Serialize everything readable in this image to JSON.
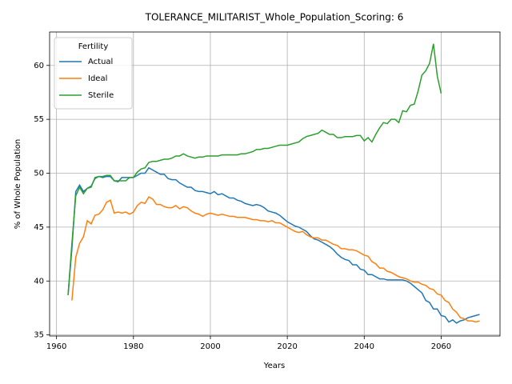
{
  "chart_data": {
    "type": "line",
    "title": "TOLERANCE_MILITARIST_Whole_Population_Scoring: 6",
    "xlabel": "Years",
    "ylabel": "% of Whole Population",
    "legend_title": "Fertility",
    "legend": "upper left",
    "grid": true,
    "xlim": [
      1958.2,
      2075.3
    ],
    "xticks": [
      1960,
      1980,
      2000,
      2020,
      2040,
      2060
    ],
    "ylim": [
      34.9,
      63.1
    ],
    "yticks": [
      35,
      40,
      45,
      50,
      55,
      60
    ],
    "x": [
      1963,
      1964,
      1965,
      1966,
      1967,
      1968,
      1969,
      1970,
      1971,
      1972,
      1973,
      1974,
      1975,
      1976,
      1977,
      1978,
      1979,
      1980,
      1981,
      1982,
      1983,
      1984,
      1985,
      1986,
      1987,
      1988,
      1989,
      1990,
      1991,
      1992,
      1993,
      1994,
      1995,
      1996,
      1997,
      1998,
      1999,
      2000,
      2001,
      2002,
      2003,
      2004,
      2005,
      2006,
      2007,
      2008,
      2009,
      2010,
      2011,
      2012,
      2013,
      2014,
      2015,
      2016,
      2017,
      2018,
      2019,
      2020,
      2021,
      2022,
      2023,
      2024,
      2025,
      2026,
      2027,
      2028,
      2029,
      2030,
      2031,
      2032,
      2033,
      2034,
      2035,
      2036,
      2037,
      2038,
      2039,
      2040,
      2041,
      2042,
      2043,
      2044,
      2045,
      2046,
      2047,
      2048,
      2049,
      2050,
      2051,
      2052,
      2053,
      2054,
      2055,
      2056,
      2057,
      2058,
      2059,
      2060,
      2061,
      2062,
      2063,
      2064,
      2065,
      2066,
      2067,
      2068,
      2069,
      2070
    ],
    "series": [
      {
        "name": "Actual",
        "color": "#1f77b4",
        "values": [
          38.7,
          43,
          48.3,
          48.9,
          48.3,
          48.6,
          48.8,
          49.5,
          49.7,
          49.6,
          49.7,
          49.7,
          49.3,
          49.2,
          49.6,
          49.6,
          49.6,
          49.6,
          49.8,
          50.0,
          50.0,
          50.5,
          50.3,
          50.1,
          49.9,
          49.9,
          49.5,
          49.4,
          49.4,
          49.1,
          48.9,
          48.7,
          48.7,
          48.4,
          48.3,
          48.3,
          48.2,
          48.1,
          48.3,
          48.0,
          48.1,
          47.9,
          47.7,
          47.7,
          47.5,
          47.4,
          47.2,
          47.1,
          47.0,
          47.1,
          47.0,
          46.8,
          46.5,
          46.4,
          46.3,
          46.1,
          45.8,
          45.5,
          45.3,
          45.1,
          45.0,
          44.8,
          44.6,
          44.2,
          43.9,
          43.8,
          43.6,
          43.4,
          43.2,
          42.9,
          42.5,
          42.2,
          42.0,
          41.9,
          41.5,
          41.5,
          41.1,
          41.0,
          40.6,
          40.6,
          40.4,
          40.2,
          40.2,
          40.1,
          40.1,
          40.1,
          40.1,
          40.1,
          40.0,
          39.8,
          39.5,
          39.2,
          38.9,
          38.2,
          38.0,
          37.4,
          37.4,
          36.8,
          36.7,
          36.2,
          36.4,
          36.1,
          36.3,
          36.4,
          36.6,
          36.7,
          36.8,
          36.9
        ]
      },
      {
        "name": "Ideal",
        "color": "#ff7f0e",
        "values": [
          null,
          38.2,
          42.2,
          43.5,
          44.1,
          45.6,
          45.3,
          46.1,
          46.2,
          46.6,
          47.3,
          47.5,
          46.3,
          46.4,
          46.3,
          46.4,
          46.2,
          46.4,
          47.0,
          47.3,
          47.2,
          47.8,
          47.6,
          47.1,
          47.1,
          46.9,
          46.8,
          46.8,
          47.0,
          46.7,
          46.9,
          46.8,
          46.5,
          46.3,
          46.2,
          46.0,
          46.2,
          46.3,
          46.2,
          46.1,
          46.2,
          46.1,
          46.0,
          46.0,
          45.9,
          45.9,
          45.9,
          45.8,
          45.7,
          45.7,
          45.6,
          45.6,
          45.5,
          45.6,
          45.4,
          45.4,
          45.2,
          45.0,
          44.8,
          44.6,
          44.5,
          44.6,
          44.3,
          44.1,
          44.0,
          44.0,
          43.8,
          43.8,
          43.6,
          43.4,
          43.3,
          43.0,
          43.0,
          42.9,
          42.9,
          42.8,
          42.6,
          42.4,
          42.3,
          41.8,
          41.6,
          41.2,
          41.2,
          40.9,
          40.8,
          40.6,
          40.4,
          40.3,
          40.2,
          40.0,
          39.9,
          39.9,
          39.7,
          39.6,
          39.3,
          39.2,
          38.8,
          38.7,
          38.2,
          38.0,
          37.4,
          37.1,
          36.6,
          36.5,
          36.3,
          36.3,
          36.2,
          36.3
        ]
      },
      {
        "name": "Sterile",
        "color": "#2ca02c",
        "values": [
          38.7,
          43.5,
          47.9,
          48.7,
          48.1,
          48.6,
          48.7,
          49.6,
          49.7,
          49.7,
          49.8,
          49.8,
          49.3,
          49.3,
          49.3,
          49.3,
          49.6,
          49.6,
          50.1,
          50.4,
          50.5,
          51.0,
          51.1,
          51.1,
          51.2,
          51.3,
          51.3,
          51.4,
          51.6,
          51.6,
          51.8,
          51.6,
          51.5,
          51.4,
          51.5,
          51.5,
          51.6,
          51.6,
          51.6,
          51.6,
          51.7,
          51.7,
          51.7,
          51.7,
          51.7,
          51.8,
          51.8,
          51.9,
          52.0,
          52.2,
          52.2,
          52.3,
          52.3,
          52.4,
          52.5,
          52.6,
          52.6,
          52.6,
          52.7,
          52.8,
          52.9,
          53.2,
          53.4,
          53.5,
          53.6,
          53.7,
          54.0,
          53.8,
          53.6,
          53.6,
          53.3,
          53.3,
          53.4,
          53.4,
          53.4,
          53.5,
          53.5,
          53.0,
          53.3,
          52.9,
          53.6,
          54.2,
          54.7,
          54.6,
          55.0,
          55.0,
          54.7,
          55.8,
          55.7,
          56.3,
          56.4,
          57.6,
          59.1,
          59.5,
          60.2,
          62.0,
          59.0,
          57.4,
          null,
          null,
          null,
          null,
          null,
          null,
          null,
          null,
          null,
          null
        ]
      }
    ]
  }
}
